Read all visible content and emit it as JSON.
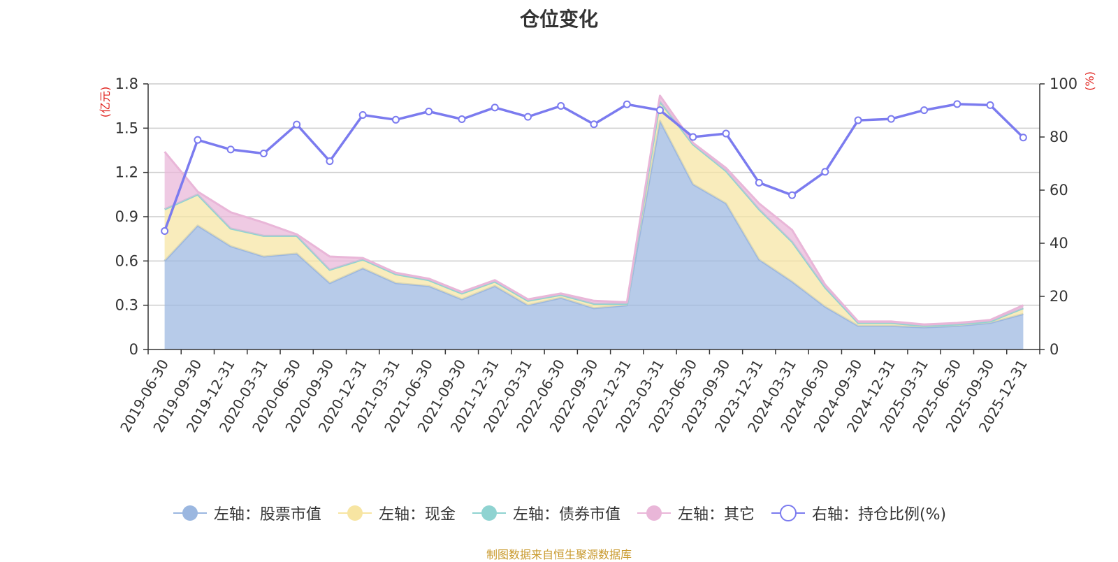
{
  "chart_data": {
    "type": "area",
    "title": "仓位变化",
    "source": "制图数据来自恒生聚源数据库",
    "categories": [
      "2019-06-30",
      "2019-09-30",
      "2019-12-31",
      "2020-03-31",
      "2020-06-30",
      "2020-09-30",
      "2020-12-31",
      "2021-03-31",
      "2021-06-30",
      "2021-09-30",
      "2021-12-31",
      "2022-03-31",
      "2022-06-30",
      "2022-09-30",
      "2022-12-31",
      "2023-03-31",
      "2023-06-30",
      "2023-09-30",
      "2023-12-31",
      "2024-03-31",
      "2024-06-30",
      "2024-09-30",
      "2024-12-31",
      "2025-03-31",
      "2025-06-30",
      "2025-09-30",
      "2025-12-31"
    ],
    "left_axis": {
      "unit": "(亿元)",
      "ylim": [
        0,
        1.8
      ],
      "ticks": [
        "0",
        "0.3",
        "0.6",
        "0.9",
        "1.2",
        "1.5",
        "1.8"
      ],
      "tick_values": [
        0,
        0.3,
        0.6,
        0.9,
        1.2,
        1.5,
        1.8
      ]
    },
    "right_axis": {
      "unit": "(%)",
      "ylim": [
        0,
        100
      ],
      "ticks": [
        "0",
        "20",
        "40",
        "60",
        "80",
        "100"
      ],
      "tick_values": [
        0,
        20,
        40,
        60,
        80,
        100
      ]
    },
    "series": [
      {
        "name": "左轴：股票市值",
        "axis": "left",
        "stack": true,
        "color": "#9bb7e0",
        "values": [
          0.6,
          0.84,
          0.7,
          0.63,
          0.65,
          0.45,
          0.55,
          0.45,
          0.43,
          0.34,
          0.43,
          0.3,
          0.35,
          0.28,
          0.3,
          1.55,
          1.12,
          0.99,
          0.61,
          0.46,
          0.29,
          0.16,
          0.16,
          0.15,
          0.16,
          0.18,
          0.24
        ]
      },
      {
        "name": "左轴：现金",
        "axis": "left",
        "stack": true,
        "color": "#f7e5a2",
        "values": [
          0.35,
          0.21,
          0.12,
          0.14,
          0.12,
          0.09,
          0.06,
          0.06,
          0.04,
          0.04,
          0.03,
          0.03,
          0.02,
          0.03,
          0.01,
          0.13,
          0.27,
          0.22,
          0.34,
          0.27,
          0.13,
          0.02,
          0.02,
          0.01,
          0.01,
          0.01,
          0.04
        ]
      },
      {
        "name": "左轴：债券市值",
        "axis": "left",
        "stack": true,
        "color": "#8fd3d1",
        "values": [
          0,
          0,
          0,
          0,
          0,
          0,
          0,
          0,
          0,
          0,
          0,
          0,
          0,
          0,
          0,
          0,
          0,
          0,
          0,
          0,
          0,
          0,
          0,
          0,
          0,
          0,
          0
        ]
      },
      {
        "name": "左轴：其它",
        "axis": "left",
        "stack": true,
        "color": "#e9b6d8",
        "values": [
          0.39,
          0.02,
          0.11,
          0.09,
          0.01,
          0.09,
          0.01,
          0.01,
          0.01,
          0.01,
          0.01,
          0.01,
          0.01,
          0.02,
          0.01,
          0.04,
          0.01,
          0.02,
          0.04,
          0.08,
          0.02,
          0.01,
          0.01,
          0.01,
          0.01,
          0.01,
          0.02
        ]
      },
      {
        "name": "右轴：持仓比例(%)",
        "axis": "right",
        "type": "line",
        "color": "#7b7bef",
        "values": [
          44.6,
          78.9,
          75.3,
          73.8,
          84.7,
          70.9,
          88.3,
          86.5,
          89.6,
          86.7,
          91.1,
          87.6,
          91.7,
          84.8,
          92.3,
          90.1,
          80.0,
          81.3,
          62.8,
          58.1,
          66.9,
          86.3,
          86.8,
          90.1,
          92.4,
          92.0,
          79.8
        ]
      }
    ]
  }
}
